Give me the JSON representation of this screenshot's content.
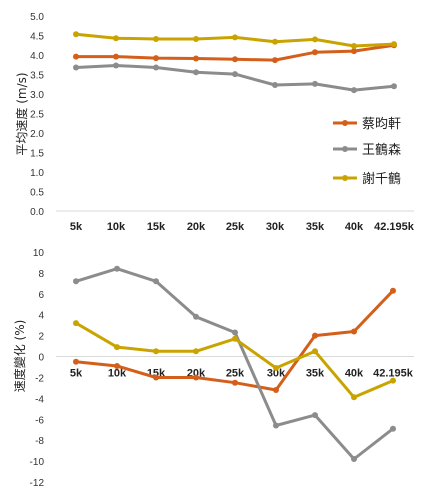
{
  "colors": {
    "cai": "#d35f1b",
    "wang": "#8c8c8c",
    "xie": "#c9a400"
  },
  "chart_data": [
    {
      "type": "line",
      "ylabel": "平均速度 (m/s)",
      "ylim": [
        0,
        5
      ],
      "yticks": [
        "0.0",
        "0.5",
        "1.0",
        "1.5",
        "2.0",
        "2.5",
        "3.0",
        "3.5",
        "4.0",
        "4.5",
        "5.0"
      ],
      "categories": [
        "5k",
        "10k",
        "15k",
        "20k",
        "25k",
        "30k",
        "35k",
        "40k",
        "42.195k"
      ],
      "legend_position": "right",
      "series": [
        {
          "name": "蔡昀軒",
          "values": [
            3.96,
            3.96,
            3.92,
            3.91,
            3.89,
            3.87,
            4.07,
            4.1,
            4.25
          ]
        },
        {
          "name": "王鶴森",
          "values": [
            3.68,
            3.73,
            3.68,
            3.56,
            3.51,
            3.23,
            3.26,
            3.1,
            3.2
          ]
        },
        {
          "name": "謝千鶴",
          "values": [
            4.53,
            4.43,
            4.41,
            4.41,
            4.45,
            4.34,
            4.4,
            4.23,
            4.28
          ]
        }
      ]
    },
    {
      "type": "line",
      "ylabel": "速度變化 (%)",
      "ylim": [
        -12,
        10
      ],
      "yticks": [
        "10",
        "8",
        "6",
        "4",
        "2",
        "0",
        "-2",
        "-4",
        "-6",
        "-8",
        "-10",
        "-12"
      ],
      "categories": [
        "5k",
        "10k",
        "15k",
        "20k",
        "25k",
        "30k",
        "35k",
        "40k",
        "42.195k"
      ],
      "series": [
        {
          "name": "蔡昀軒",
          "values": [
            -0.5,
            -0.9,
            -2.0,
            -2.0,
            -2.5,
            -3.2,
            2.0,
            2.4,
            6.3
          ]
        },
        {
          "name": "王鶴森",
          "values": [
            7.2,
            8.4,
            7.2,
            3.8,
            2.3,
            -6.6,
            -5.6,
            -9.8,
            -6.9
          ]
        },
        {
          "name": "謝千鶴",
          "values": [
            3.2,
            0.9,
            0.5,
            0.5,
            1.7,
            -1.1,
            0.5,
            -3.9,
            -2.3
          ]
        }
      ]
    }
  ]
}
